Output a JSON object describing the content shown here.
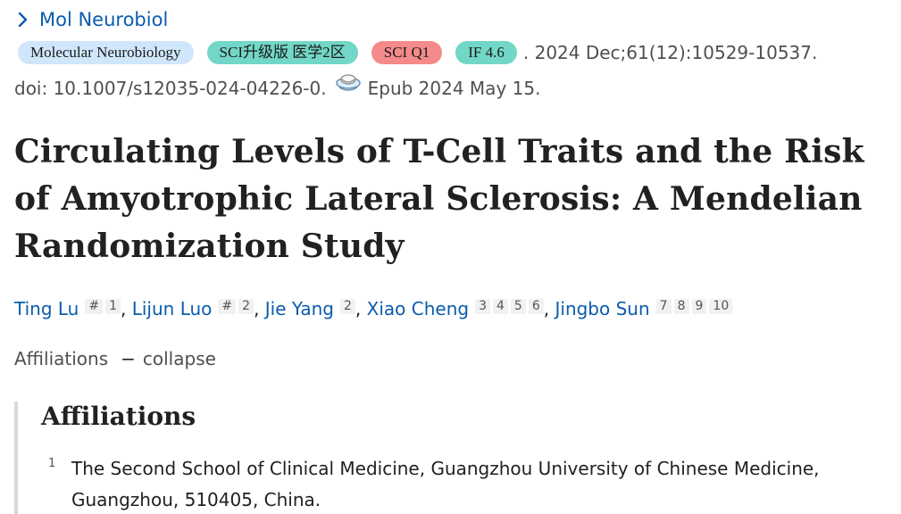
{
  "journal": {
    "short_name": "Mol Neurobiol"
  },
  "badges": [
    {
      "label": "Molecular Neurobiology",
      "color": "#cfe6fb"
    },
    {
      "label": "SCI升级版 医学2区",
      "color": "#72d7c7"
    },
    {
      "label": "SCI Q1",
      "color": "#f48a8a"
    },
    {
      "label": "IF 4.6",
      "color": "#72d7c7"
    }
  ],
  "citation": {
    "date_volume": ". 2024 Dec;61(12):10529-10537.",
    "doi": "doi: 10.1007/s12035-024-04226-0.",
    "epub": "Epub 2024 May 15."
  },
  "article": {
    "title": "Circulating Levels of T-Cell Traits and the Risk of Amyotrophic Lateral Sclerosis: A Mendelian Randomization Study"
  },
  "authors": [
    {
      "name": "Ting Lu",
      "sups": [
        "#",
        "1"
      ]
    },
    {
      "name": "Lijun Luo",
      "sups": [
        "#",
        "2"
      ]
    },
    {
      "name": "Jie Yang",
      "sups": [
        "2"
      ]
    },
    {
      "name": "Xiao Cheng",
      "sups": [
        "3",
        "4",
        "5",
        "6"
      ]
    },
    {
      "name": "Jingbo Sun",
      "sups": [
        "7",
        "8",
        "9",
        "10"
      ]
    }
  ],
  "affiliations_toggle": {
    "label": "Affiliations",
    "dash": "−",
    "action": "collapse"
  },
  "affiliations": {
    "heading": "Affiliations",
    "items": [
      {
        "num": "1",
        "text": "The Second School of Clinical Medicine, Guangzhou University of Chinese Medicine, Guangzhou, 510405, China."
      }
    ]
  },
  "colors": {
    "link": "#0b5cad",
    "text": "#212121",
    "muted": "#4f4f4f"
  }
}
